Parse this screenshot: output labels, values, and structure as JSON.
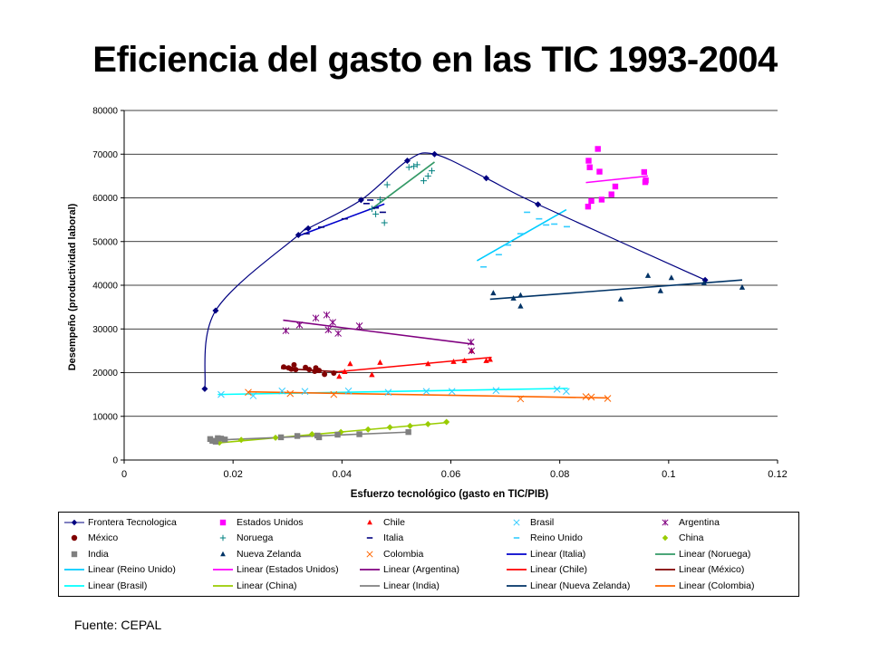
{
  "title": "Eficiencia del gasto en las TIC 1993-2004",
  "source": "Fuente: CEPAL",
  "chart_data": {
    "type": "scatter",
    "title": "Eficiencia del gasto en las TIC 1993-2004",
    "xlabel": "Esfuerzo tecnológico (gasto en TIC/PIB)",
    "ylabel": "Desempeño (productividad laboral)",
    "xlim": [
      0,
      0.12
    ],
    "ylim": [
      0,
      80000
    ],
    "x_ticks": [
      0,
      0.02,
      0.04,
      0.06,
      0.08,
      0.1,
      0.12
    ],
    "x_tick_labels": [
      "0",
      "0.02",
      "0.04",
      "0.06",
      "0.08",
      "0.1",
      "0.12"
    ],
    "y_ticks": [
      0,
      10000,
      20000,
      30000,
      40000,
      50000,
      60000,
      70000,
      80000
    ],
    "y_tick_labels": [
      "0",
      "10000",
      "20000",
      "30000",
      "40000",
      "50000",
      "60000",
      "70000",
      "80000"
    ],
    "grid": "horizontal",
    "legend_position": "bottom",
    "series": [
      {
        "name": "Frontera Tecnologica",
        "marker": "diamond",
        "color": "#000080",
        "smooth_line": true,
        "points": [
          [
            0.0148,
            16300
          ],
          [
            0.0168,
            34200
          ],
          [
            0.032,
            51500
          ],
          [
            0.0338,
            53000
          ],
          [
            0.0435,
            59500
          ],
          [
            0.052,
            68500
          ],
          [
            0.057,
            70000
          ],
          [
            0.0665,
            64500
          ],
          [
            0.076,
            58500
          ],
          [
            0.1067,
            41200
          ]
        ]
      },
      {
        "name": "Estados Unidos",
        "marker": "square",
        "color": "#ff00ff",
        "points": [
          [
            0.0852,
            58000
          ],
          [
            0.0858,
            59300
          ],
          [
            0.0855,
            67000
          ],
          [
            0.0853,
            68500
          ],
          [
            0.087,
            71200
          ],
          [
            0.0873,
            66000
          ],
          [
            0.0877,
            59600
          ],
          [
            0.0902,
            62600
          ],
          [
            0.0895,
            60800
          ],
          [
            0.0955,
            65900
          ],
          [
            0.0958,
            64000
          ],
          [
            0.0957,
            63600
          ]
        ]
      },
      {
        "name": "Chile",
        "marker": "triangle",
        "color": "#ff0000",
        "points": [
          [
            0.0395,
            19100
          ],
          [
            0.0405,
            20200
          ],
          [
            0.0415,
            22000
          ],
          [
            0.0455,
            19500
          ],
          [
            0.047,
            22300
          ],
          [
            0.0558,
            22000
          ],
          [
            0.0605,
            22500
          ],
          [
            0.0625,
            22700
          ],
          [
            0.0638,
            25000
          ],
          [
            0.0665,
            22700
          ],
          [
            0.0672,
            23000
          ]
        ]
      },
      {
        "name": "Brasil",
        "marker": "x",
        "color": "#33ccff",
        "points": [
          [
            0.0178,
            15000
          ],
          [
            0.0237,
            14700
          ],
          [
            0.029,
            15800
          ],
          [
            0.0332,
            15700
          ],
          [
            0.0412,
            15800
          ],
          [
            0.0485,
            15500
          ],
          [
            0.0555,
            15700
          ],
          [
            0.0602,
            15700
          ],
          [
            0.0683,
            15900
          ],
          [
            0.0795,
            16200
          ],
          [
            0.0812,
            15700
          ]
        ]
      },
      {
        "name": "Argentina",
        "marker": "asterisk",
        "color": "#800080",
        "points": [
          [
            0.0297,
            29600
          ],
          [
            0.0322,
            30900
          ],
          [
            0.0352,
            32500
          ],
          [
            0.0372,
            33200
          ],
          [
            0.0375,
            29800
          ],
          [
            0.0383,
            31500
          ],
          [
            0.0393,
            29000
          ],
          [
            0.0432,
            30700
          ],
          [
            0.0637,
            27000
          ],
          [
            0.0638,
            25000
          ]
        ]
      },
      {
        "name": "México",
        "marker": "circle",
        "color": "#800000",
        "points": [
          [
            0.0293,
            21300
          ],
          [
            0.0302,
            21100
          ],
          [
            0.0307,
            20800
          ],
          [
            0.0312,
            21800
          ],
          [
            0.0315,
            20700
          ],
          [
            0.0333,
            21200
          ],
          [
            0.034,
            20700
          ],
          [
            0.035,
            20300
          ],
          [
            0.0352,
            21100
          ],
          [
            0.0358,
            20500
          ],
          [
            0.0368,
            19600
          ],
          [
            0.0385,
            19900
          ]
        ]
      },
      {
        "name": "Noruega",
        "marker": "plus",
        "color": "#008080",
        "points": [
          [
            0.0455,
            57500
          ],
          [
            0.0462,
            56300
          ],
          [
            0.047,
            59600
          ],
          [
            0.0483,
            63000
          ],
          [
            0.0478,
            54300
          ],
          [
            0.0523,
            67000
          ],
          [
            0.0532,
            67200
          ],
          [
            0.0538,
            67600
          ],
          [
            0.055,
            63900
          ],
          [
            0.0558,
            65000
          ],
          [
            0.0565,
            66200
          ]
        ]
      },
      {
        "name": "Italia",
        "marker": "dash",
        "color": "#000080",
        "points": [
          [
            0.0335,
            51800
          ],
          [
            0.0362,
            53300
          ],
          [
            0.0405,
            55200
          ],
          [
            0.0445,
            58700
          ],
          [
            0.0452,
            59500
          ],
          [
            0.0462,
            57700
          ],
          [
            0.0475,
            56700
          ]
        ]
      },
      {
        "name": "Reino Unido",
        "marker": "dash",
        "color": "#33ccff",
        "points": [
          [
            0.066,
            44200
          ],
          [
            0.0688,
            47000
          ],
          [
            0.0705,
            49200
          ],
          [
            0.0728,
            51800
          ],
          [
            0.074,
            56700
          ],
          [
            0.0762,
            55200
          ],
          [
            0.0775,
            53800
          ],
          [
            0.079,
            54000
          ],
          [
            0.0813,
            53400
          ]
        ]
      },
      {
        "name": "China",
        "marker": "diamond",
        "color": "#99cc00",
        "points": [
          [
            0.0175,
            4000
          ],
          [
            0.0215,
            4600
          ],
          [
            0.0278,
            5100
          ],
          [
            0.0345,
            5900
          ],
          [
            0.0398,
            6400
          ],
          [
            0.0448,
            7000
          ],
          [
            0.0488,
            7500
          ],
          [
            0.0525,
            7800
          ],
          [
            0.0558,
            8200
          ],
          [
            0.0592,
            8700
          ]
        ]
      },
      {
        "name": "India",
        "marker": "square",
        "color": "#808080",
        "points": [
          [
            0.0158,
            4800
          ],
          [
            0.0162,
            4400
          ],
          [
            0.0168,
            4200
          ],
          [
            0.0172,
            5000
          ],
          [
            0.0178,
            4900
          ],
          [
            0.0185,
            4700
          ],
          [
            0.0288,
            5200
          ],
          [
            0.0318,
            5500
          ],
          [
            0.0355,
            5600
          ],
          [
            0.0358,
            5200
          ],
          [
            0.0392,
            5800
          ],
          [
            0.0432,
            5900
          ],
          [
            0.0522,
            6400
          ]
        ]
      },
      {
        "name": "Nueva Zelanda",
        "marker": "triangle",
        "color": "#003366",
        "points": [
          [
            0.0678,
            38200
          ],
          [
            0.0715,
            37000
          ],
          [
            0.0728,
            37700
          ],
          [
            0.0728,
            35200
          ],
          [
            0.0912,
            36800
          ],
          [
            0.0962,
            42200
          ],
          [
            0.0985,
            38700
          ],
          [
            0.1005,
            41700
          ],
          [
            0.1065,
            40500
          ],
          [
            0.1135,
            39500
          ]
        ]
      },
      {
        "name": "Colombia",
        "marker": "x",
        "color": "#ff6600",
        "points": [
          [
            0.0228,
            15500
          ],
          [
            0.0305,
            15200
          ],
          [
            0.0385,
            15000
          ],
          [
            0.0728,
            14000
          ],
          [
            0.0848,
            14500
          ],
          [
            0.0858,
            14400
          ],
          [
            0.0888,
            14100
          ]
        ]
      }
    ],
    "trendlines": [
      {
        "name": "Linear (Italia)",
        "color": "#0000cc",
        "x": [
          0.0318,
          0.0478
        ],
        "y": [
          51200,
          58600
        ]
      },
      {
        "name": "Linear (Noruega)",
        "color": "#339966",
        "x": [
          0.0455,
          0.057
        ],
        "y": [
          57500,
          68200
        ]
      },
      {
        "name": "Linear (Reino Unido)",
        "color": "#00ccff",
        "x": [
          0.0648,
          0.0812
        ],
        "y": [
          45600,
          57300
        ]
      },
      {
        "name": "Linear (Estados Unidos)",
        "color": "#ff00ff",
        "x": [
          0.0848,
          0.0962
        ],
        "y": [
          63500,
          65000
        ]
      },
      {
        "name": "Linear (Argentina)",
        "color": "#800080",
        "x": [
          0.0292,
          0.0642
        ],
        "y": [
          32000,
          26500
        ]
      },
      {
        "name": "Linear (Chile)",
        "color": "#ff0000",
        "x": [
          0.0392,
          0.0675
        ],
        "y": [
          20200,
          23500
        ]
      },
      {
        "name": "Linear (México)",
        "color": "#800000",
        "x": [
          0.0288,
          0.0392
        ],
        "y": [
          21000,
          20200
        ]
      },
      {
        "name": "Linear (Brasil)",
        "color": "#00ffff",
        "x": [
          0.0172,
          0.0815
        ],
        "y": [
          15000,
          16400
        ]
      },
      {
        "name": "Linear (China)",
        "color": "#99cc00",
        "x": [
          0.0172,
          0.0595
        ],
        "y": [
          3900,
          8600
        ]
      },
      {
        "name": "Linear (India)",
        "color": "#808080",
        "x": [
          0.0155,
          0.0525
        ],
        "y": [
          4500,
          6400
        ]
      },
      {
        "name": "Linear (Nueva Zelanda)",
        "color": "#003366",
        "x": [
          0.0672,
          0.1135
        ],
        "y": [
          36800,
          41200
        ]
      },
      {
        "name": "Linear (Colombia)",
        "color": "#ff6600",
        "x": [
          0.0228,
          0.0888
        ],
        "y": [
          15600,
          14200
        ]
      }
    ],
    "legend": [
      [
        "Frontera Tecnologica",
        "Estados Unidos",
        "Chile",
        "Brasil",
        "Argentina"
      ],
      [
        "México",
        "Noruega",
        "Italia",
        "Reino Unido",
        "China"
      ],
      [
        "India",
        "Nueva Zelanda",
        "Colombia",
        "Linear (Italia)",
        "Linear (Noruega)"
      ],
      [
        "Linear (Reino Unido)",
        "Linear (Estados Unidos)",
        "Linear (Argentina)",
        "Linear (Chile)",
        "Linear (México)"
      ],
      [
        "Linear (Brasil)",
        "Linear (China)",
        "Linear (India)",
        "Linear (Nueva Zelanda)",
        "Linear (Colombia)"
      ]
    ]
  }
}
